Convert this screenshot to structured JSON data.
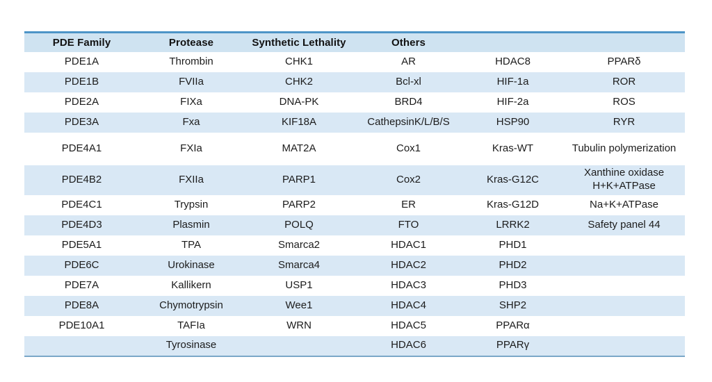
{
  "table": {
    "headers": [
      "PDE Family",
      "Protease",
      "Synthetic Lethality",
      "Others",
      "",
      ""
    ],
    "rows": [
      [
        "PDE1A",
        "Thrombin",
        "CHK1",
        "AR",
        "HDAC8",
        "PPARδ"
      ],
      [
        "PDE1B",
        "FVIIa",
        "CHK2",
        "Bcl-xl",
        "HIF-1a",
        "ROR"
      ],
      [
        "PDE2A",
        "FIXa",
        "DNA-PK",
        "BRD4",
        "HIF-2a",
        "ROS"
      ],
      [
        "PDE3A",
        "Fxa",
        "KIF18A",
        "CathepsinK/L/B/S",
        "HSP90",
        "RYR"
      ],
      [
        "PDE4A1",
        "FXIa",
        "MAT2A",
        "Cox1",
        "Kras-WT",
        "Tubulin polymerization"
      ],
      [
        "PDE4B2",
        "FXIIa",
        "PARP1",
        "Cox2",
        "Kras-G12C",
        "Xanthine oxidase\nH+K+ATPase"
      ],
      [
        "PDE4C1",
        "Trypsin",
        "PARP2",
        "ER",
        "Kras-G12D",
        "Na+K+ATPase"
      ],
      [
        "PDE4D3",
        "Plasmin",
        "POLQ",
        "FTO",
        "LRRK2",
        "Safety panel 44"
      ],
      [
        "PDE5A1",
        "TPA",
        "Smarca2",
        "HDAC1",
        "PHD1",
        ""
      ],
      [
        "PDE6C",
        "Urokinase",
        "Smarca4",
        "HDAC2",
        "PHD2",
        ""
      ],
      [
        "PDE7A",
        "Kallikern",
        "USP1",
        "HDAC3",
        "PHD3",
        ""
      ],
      [
        "PDE8A",
        "Chymotrypsin",
        "Wee1",
        "HDAC4",
        "SHP2",
        ""
      ],
      [
        "PDE10A1",
        "TAFIa",
        "WRN",
        "HDAC5",
        "PPARα",
        ""
      ],
      [
        "",
        "Tyrosinase",
        "",
        "HDAC6",
        "PPARγ",
        ""
      ]
    ]
  },
  "colors": {
    "stripe": "#d9e8f5",
    "header_band": "#cfe3f1",
    "top_border": "#4d94c7",
    "bottom_border": "#7aa7c8",
    "text": "#1c1c1c"
  }
}
